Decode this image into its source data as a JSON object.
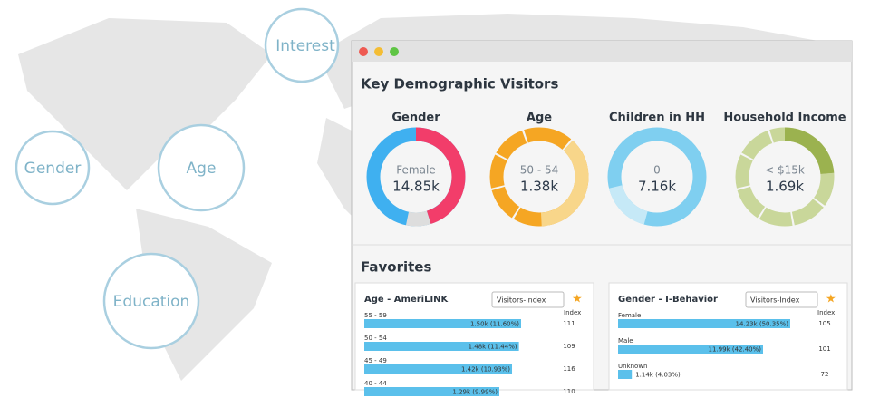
{
  "map_labels": [
    "Interest",
    "Gender",
    "Age",
    "Education"
  ],
  "window": {
    "title": "Key Demographic Visitors",
    "donuts": [
      {
        "title": "Gender",
        "center_label": "Female",
        "center_value": "14.85k"
      },
      {
        "title": "Age",
        "center_label": "50 - 54",
        "center_value": "1.38k"
      },
      {
        "title": "Children in HH",
        "center_label": "0",
        "center_value": "7.16k"
      },
      {
        "title": "Household Income",
        "center_label": "< $15k",
        "center_value": "1.69k"
      }
    ],
    "favorites_title": "Favorites",
    "panels": [
      {
        "title": "Age - AmeriLINK",
        "select": "Visitors-Index",
        "index_header": "Index",
        "rows": [
          {
            "label": "55 - 59",
            "value": 11.6,
            "value_label": "1.50k (11.60%)",
            "index": 111
          },
          {
            "label": "50 - 54",
            "value": 11.44,
            "value_label": "1.48k (11.44%)",
            "index": 109
          },
          {
            "label": "45 - 49",
            "value": 10.93,
            "value_label": "1.42k (10.93%)",
            "index": 116
          },
          {
            "label": "40 - 44",
            "value": 9.99,
            "value_label": "1.29k (9.99%)",
            "index": 110
          }
        ]
      },
      {
        "title": "Gender - I-Behavior",
        "select": "Visitors-Index",
        "index_header": "Index",
        "rows": [
          {
            "label": "Female",
            "value": 50.35,
            "value_label": "14.23k (50.35%)",
            "index": 105
          },
          {
            "label": "Male",
            "value": 42.4,
            "value_label": "11.99k (42.40%)",
            "index": 101
          },
          {
            "label": "Unknown",
            "value": 4.03,
            "value_label": "1.14k (4.03%)",
            "index": 72
          }
        ]
      }
    ]
  }
}
